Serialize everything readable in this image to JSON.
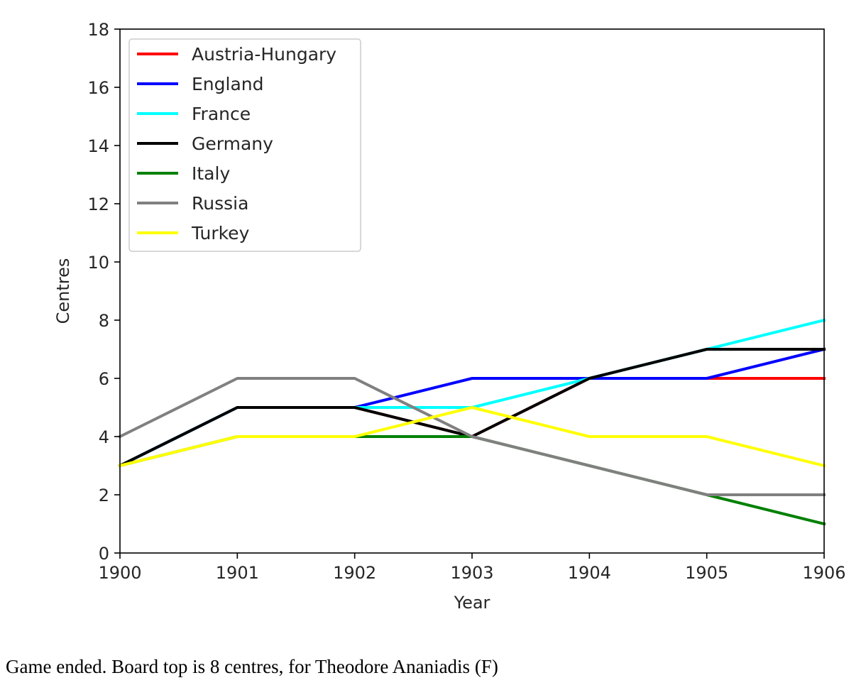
{
  "chart_data": {
    "type": "line",
    "xlabel": "Year",
    "ylabel": "Centres",
    "x": [
      1900,
      1901,
      1902,
      1903,
      1904,
      1905,
      1906
    ],
    "xlim": [
      1900,
      1906
    ],
    "ylim": [
      0,
      18
    ],
    "yticks": [
      0,
      2,
      4,
      6,
      8,
      10,
      12,
      14,
      16,
      18
    ],
    "xticks": [
      1900,
      1901,
      1902,
      1903,
      1904,
      1905,
      1906
    ],
    "grid": false,
    "legend_position": "top-left",
    "series": [
      {
        "name": "Austria-Hungary",
        "color": "#ff0000",
        "values": [
          3,
          5,
          5,
          4,
          6,
          6,
          6
        ]
      },
      {
        "name": "England",
        "color": "#0000ff",
        "values": [
          3,
          5,
          5,
          6,
          6,
          6,
          7
        ]
      },
      {
        "name": "France",
        "color": "#00ffff",
        "values": [
          3,
          5,
          5,
          5,
          6,
          7,
          8
        ]
      },
      {
        "name": "Germany",
        "color": "#000000",
        "values": [
          3,
          5,
          5,
          4,
          6,
          7,
          7
        ]
      },
      {
        "name": "Italy",
        "color": "#008000",
        "values": [
          3,
          4,
          4,
          4,
          3,
          2,
          1
        ]
      },
      {
        "name": "Russia",
        "color": "#808080",
        "values": [
          4,
          6,
          6,
          4,
          3,
          2,
          2
        ]
      },
      {
        "name": "Turkey",
        "color": "#ffff00",
        "values": [
          3,
          4,
          4,
          5,
          4,
          4,
          3
        ]
      }
    ]
  },
  "caption": "Game ended. Board top is 8 centres, for Theodore Ananiadis (F)"
}
